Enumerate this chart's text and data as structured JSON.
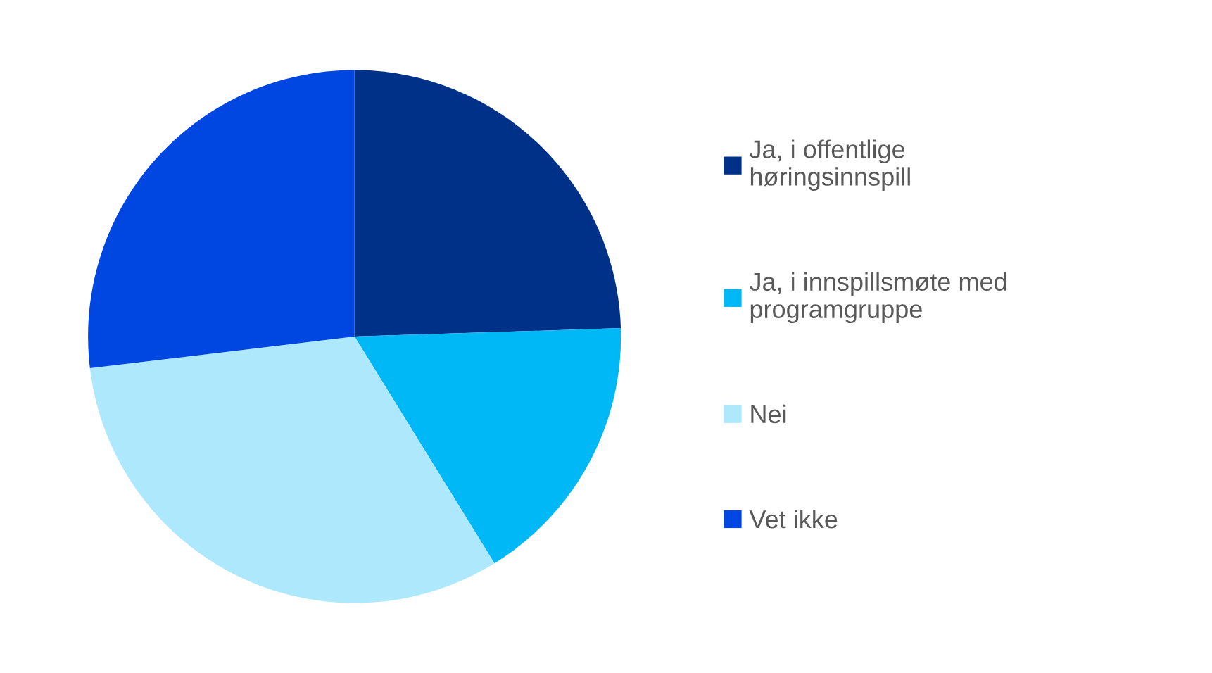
{
  "chart_data": {
    "type": "pie",
    "categories": [
      "Ja, i offentlige høringsinnspill",
      "Ja, i innspillsmøte med programgruppe",
      "Nei",
      "Vet ikke"
    ],
    "values": [
      24.5,
      16.7,
      31.9,
      26.9
    ],
    "colors": [
      "#003189",
      "#00b8f5",
      "#aee8fd",
      "#0046e0"
    ],
    "legend": "right"
  }
}
